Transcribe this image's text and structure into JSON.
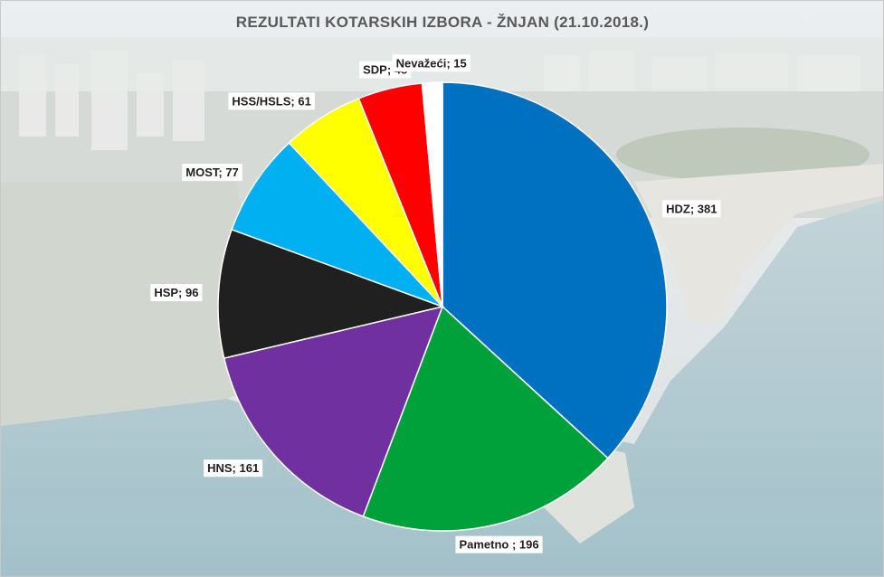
{
  "chart_data": {
    "type": "pie",
    "title": "REZULTATI  KOTARSKIH  IZBORA - ŽNJAN (21.10.2018.)",
    "categories": [
      "HDZ",
      "Pametno ",
      "HNS",
      "HSP",
      "MOST",
      "HSS/HSLS",
      "SDP",
      "Nevažeći"
    ],
    "values": [
      381,
      196,
      161,
      96,
      77,
      61,
      48,
      15
    ],
    "labels": [
      "HDZ; 381",
      "Pametno ; 196",
      "HNS; 161",
      "HSP; 96",
      "MOST; 77",
      "HSS/HSLS; 61",
      "SDP; 48",
      "Nevažeći; 15"
    ],
    "colors": [
      "#0070C0",
      "#00A03A",
      "#7030A0",
      "#202020",
      "#00B0F0",
      "#FFFF00",
      "#FF0000",
      "#FFFFFF"
    ],
    "start_angle": "12 o'clock",
    "direction": "clockwise",
    "legend": "none",
    "data_labels": "outside end"
  }
}
